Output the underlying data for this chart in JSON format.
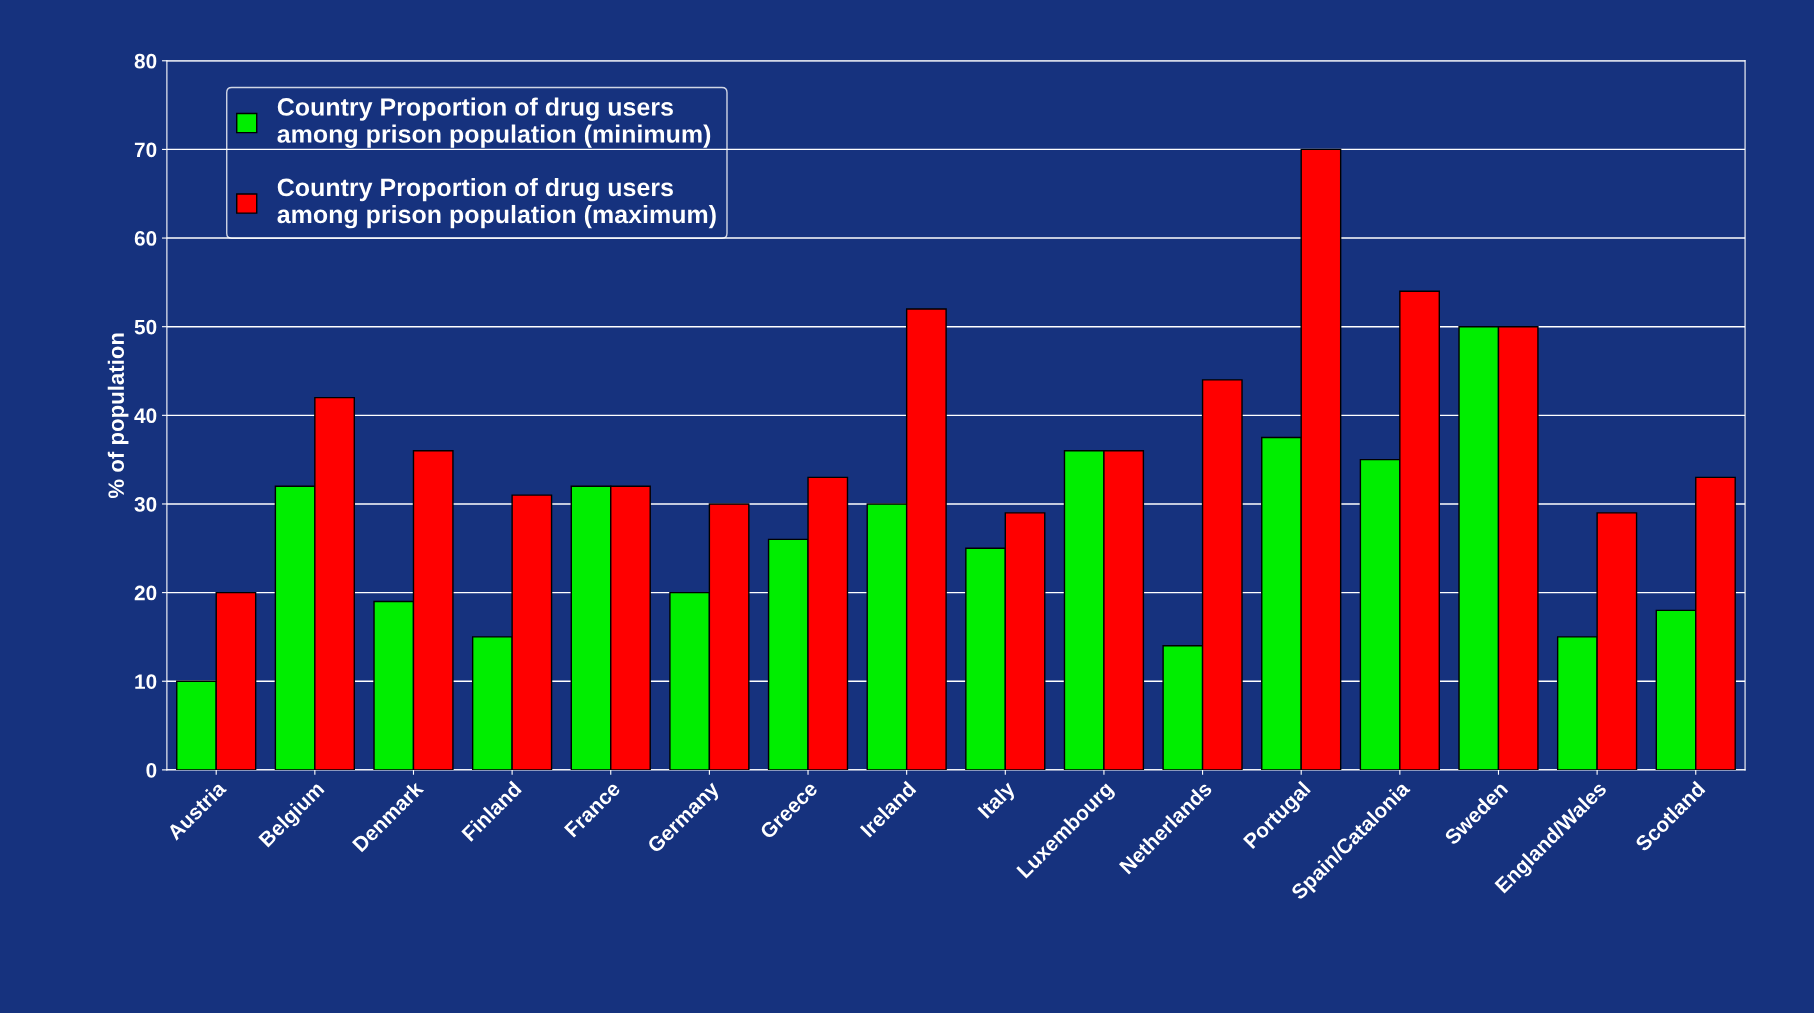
{
  "chart_data": {
    "type": "bar",
    "ylabel": "% of population",
    "categories": [
      "Austria",
      "Belgium",
      "Denmark",
      "Finland",
      "France",
      "Germany",
      "Greece",
      "Ireland",
      "Italy",
      "Luxembourg",
      "Netherlands",
      "Portugal",
      "Spain/Catalonia",
      "Sweden",
      "England/Wales",
      "Scotland"
    ],
    "series": [
      {
        "name": "Country Proportion of drug users\namong prison population (minimum)",
        "color": "#00ee00",
        "values": [
          10,
          32,
          19,
          15,
          32,
          20,
          26,
          30,
          25,
          36,
          14,
          37.5,
          35,
          50,
          15,
          18
        ]
      },
      {
        "name": "Country Proportion of drug users\namong prison population (maximum)",
        "color": "#ff0000",
        "values": [
          20,
          42,
          36,
          31,
          32,
          30,
          33,
          52,
          29,
          36,
          44,
          70,
          54,
          50,
          29,
          33
        ]
      }
    ],
    "ylim": [
      0,
      80
    ],
    "yticks": [
      0,
      10,
      20,
      30,
      40,
      50,
      60,
      70,
      80
    ],
    "grid": "y",
    "legend": "top left"
  }
}
